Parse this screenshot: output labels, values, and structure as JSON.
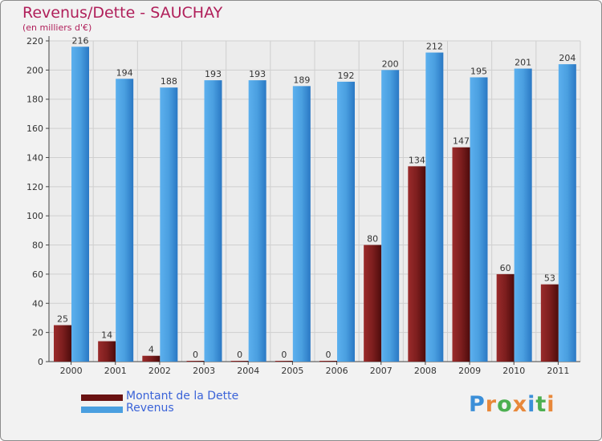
{
  "header": {
    "title": "Revenus/Dette - SAUCHAY",
    "subtitle": "(en milliers d'€)"
  },
  "chart_data": {
    "type": "bar",
    "title": "Revenus/Dette - SAUCHAY",
    "ylabel": "(en milliers d'€)",
    "xlabel": "",
    "categories": [
      "2000",
      "2001",
      "2002",
      "2003",
      "2004",
      "2005",
      "2006",
      "2007",
      "2008",
      "2009",
      "2010",
      "2011"
    ],
    "series": [
      {
        "name": "Montant de la Dette",
        "color": "#7a1a1a",
        "values": [
          25,
          14,
          4,
          0,
          0,
          0,
          0,
          80,
          134,
          147,
          60,
          53
        ]
      },
      {
        "name": "Revenus",
        "color": "#4a9fe0",
        "values": [
          216,
          194,
          188,
          193,
          193,
          189,
          192,
          200,
          212,
          195,
          201,
          204
        ]
      }
    ],
    "ylim": [
      0,
      220
    ],
    "yticks": [
      0,
      20,
      40,
      60,
      80,
      100,
      120,
      140,
      160,
      180,
      200,
      220
    ],
    "grid": true,
    "legend": "bottom-left"
  },
  "legend": {
    "items": [
      {
        "label": "Montant de la Dette",
        "color": "#7a1a1a"
      },
      {
        "label": "Revenus",
        "color": "#4a9fe0"
      }
    ]
  },
  "logo": {
    "letters": [
      "P",
      "r",
      "o",
      "x",
      "i",
      "t",
      "i"
    ],
    "colors": [
      "#3b8fd8",
      "#e8883a",
      "#4caf50",
      "#e8883a",
      "#3b8fd8",
      "#4caf50",
      "#e8883a"
    ]
  }
}
